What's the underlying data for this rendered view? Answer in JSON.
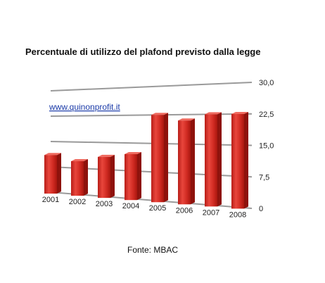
{
  "chart_data": {
    "type": "bar",
    "title": "Percentuale di utilizzo del plafond previsto dalla legge",
    "categories": [
      "2001",
      "2002",
      "2003",
      "2004",
      "2005",
      "2006",
      "2007",
      "2008"
    ],
    "values": [
      11,
      9.5,
      11,
      12,
      22.5,
      21,
      22.5,
      22.5
    ],
    "yticks": [
      "0",
      "7,5",
      "15,0",
      "22,5",
      "30,0"
    ],
    "ylim": [
      0,
      30
    ],
    "grid": true,
    "bar_color": "#d42a22",
    "grid_color": "#9a9a9a",
    "xlabel": "",
    "ylabel": ""
  },
  "watermark_link": "www.quinonprofit.it",
  "source_label": "Fonte: MBAC"
}
